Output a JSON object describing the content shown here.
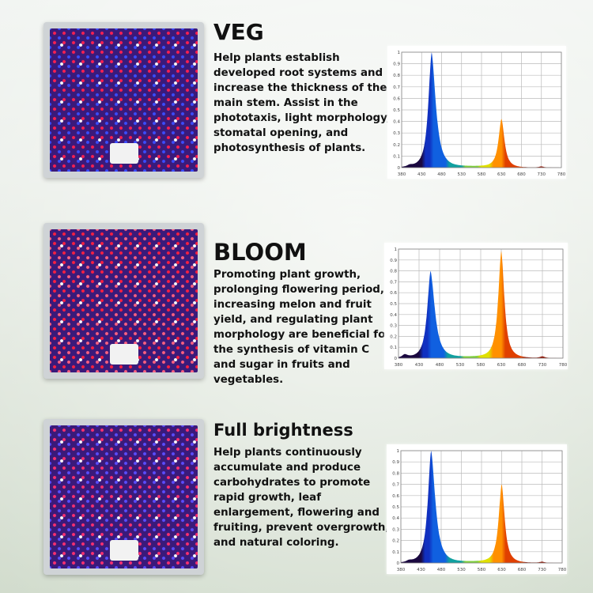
{
  "sections": [
    {
      "title": "VEG",
      "description": "Help plants establish developed root systems and increase the thickness of the main stem. Assist in the phototaxis, light morphology, stomatal opening, and photosynthesis of plants.",
      "led_colors": [
        "#ff2050",
        "#3a4dff",
        "#ffffff"
      ]
    },
    {
      "title": "BLOOM",
      "description": "Promoting plant growth, prolonging flowering period, increasing melon and fruit yield, and regulating plant morphology are beneficial for the synthesis of vitamin C and sugar in fruits and vegetables.",
      "led_colors": [
        "#ff2040",
        "#ff6080",
        "#ffffff"
      ]
    },
    {
      "title": "Full brightness",
      "description": "Help plants continuously accumulate and produce carbohydrates to promote rapid growth, leaf enlargement, flowering and fruiting, prevent overgrowth, and natural coloring.",
      "led_colors": [
        "#ff3070",
        "#5a4dff",
        "#ffffff"
      ]
    }
  ],
  "chart_data": [
    {
      "type": "area",
      "xlim": [
        380,
        780
      ],
      "ylim": [
        0,
        1
      ],
      "grid": true,
      "x_ticks": [
        "380",
        "430",
        "480",
        "530",
        "580",
        "630",
        "680",
        "730",
        "780"
      ],
      "y_ticks": [
        "0",
        "0.1",
        "0.2",
        "0.3",
        "0.4",
        "0.5",
        "0.6",
        "0.7",
        "0.8",
        "0.9",
        "1"
      ],
      "peaks": [
        {
          "wavelength": 455,
          "value": 1.0
        },
        {
          "wavelength": 630,
          "value": 0.42
        },
        {
          "wavelength": 400,
          "value": 0.015
        },
        {
          "wavelength": 730,
          "value": 0.01
        }
      ]
    },
    {
      "type": "area",
      "xlim": [
        380,
        780
      ],
      "ylim": [
        0,
        1
      ],
      "grid": true,
      "x_ticks": [
        "380",
        "430",
        "480",
        "530",
        "580",
        "630",
        "680",
        "730",
        "780"
      ],
      "y_ticks": [
        "0",
        "0.1",
        "0.2",
        "0.3",
        "0.4",
        "0.5",
        "0.6",
        "0.7",
        "0.8",
        "0.9",
        "1"
      ],
      "peaks": [
        {
          "wavelength": 458,
          "value": 0.8
        },
        {
          "wavelength": 630,
          "value": 0.98
        },
        {
          "wavelength": 395,
          "value": 0.03
        },
        {
          "wavelength": 730,
          "value": 0.015
        }
      ]
    },
    {
      "type": "area",
      "xlim": [
        380,
        780
      ],
      "ylim": [
        0,
        1
      ],
      "grid": true,
      "x_ticks": [
        "380",
        "430",
        "480",
        "530",
        "580",
        "630",
        "680",
        "730",
        "780"
      ],
      "y_ticks": [
        "0",
        "0.1",
        "0.2",
        "0.3",
        "0.4",
        "0.5",
        "0.6",
        "0.7",
        "0.8",
        "0.9",
        "1"
      ],
      "peaks": [
        {
          "wavelength": 455,
          "value": 1.0
        },
        {
          "wavelength": 630,
          "value": 0.7
        },
        {
          "wavelength": 400,
          "value": 0.015
        },
        {
          "wavelength": 730,
          "value": 0.01
        }
      ]
    }
  ]
}
